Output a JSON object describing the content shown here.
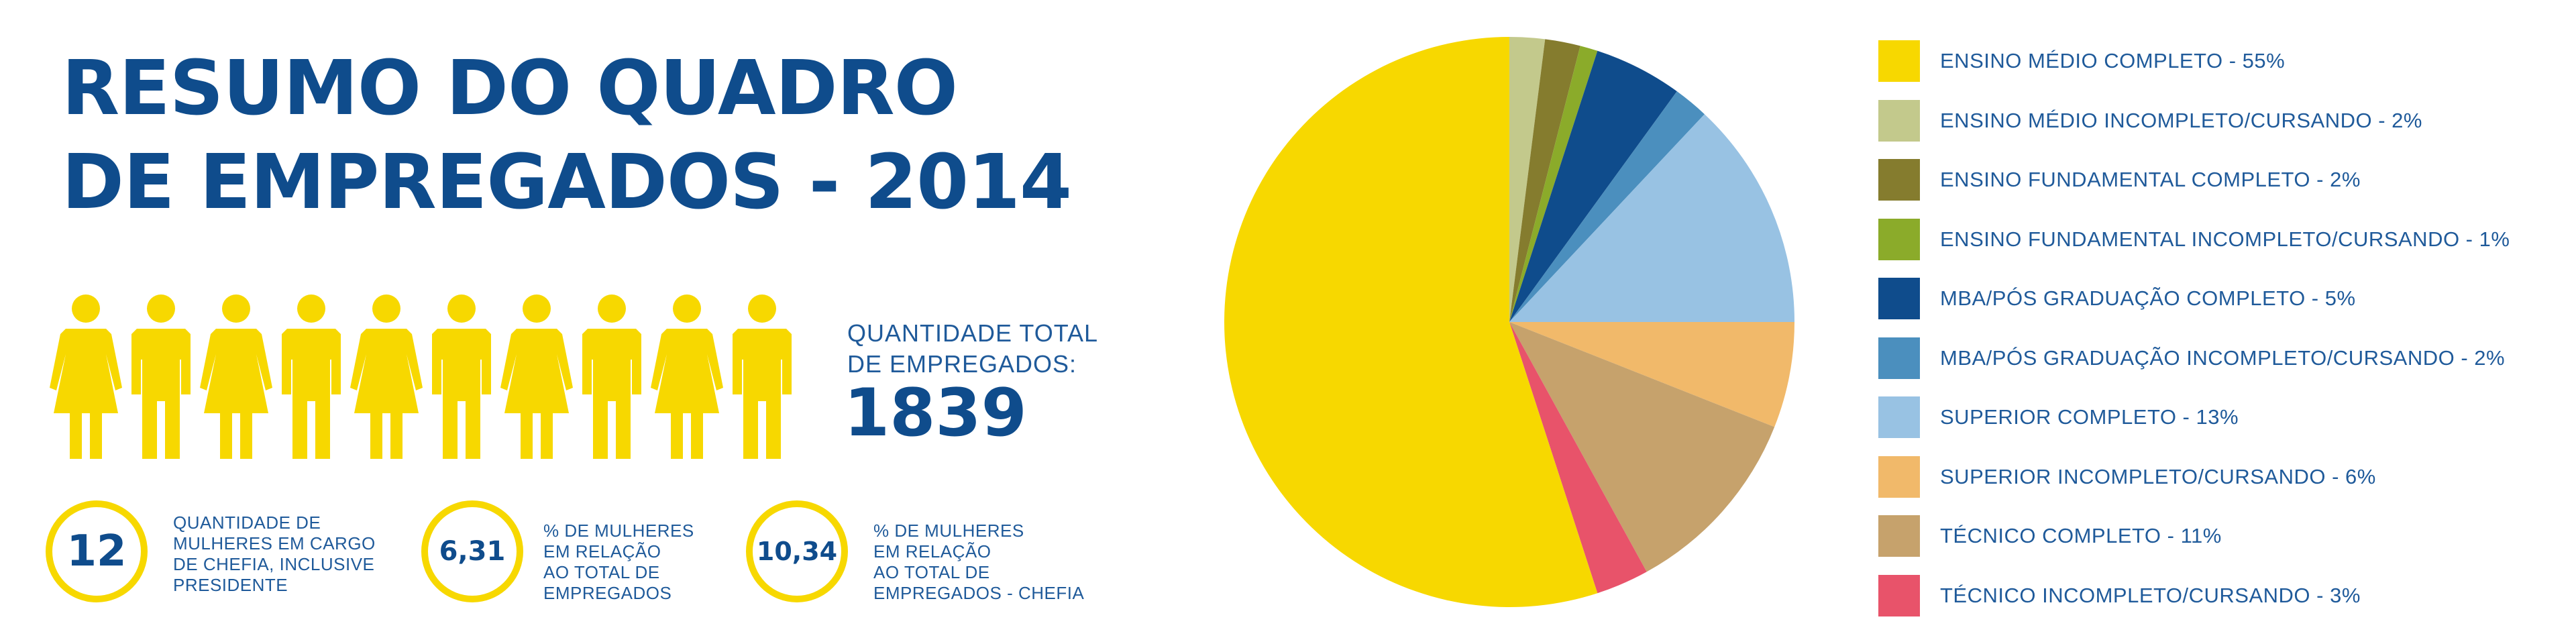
{
  "title": {
    "line1": "RESUMO DO QUADRO",
    "line2": "DE EMPREGADOS - 2014"
  },
  "total": {
    "label_line1": "QUANTIDADE TOTAL",
    "label_line2": "DE EMPREGADOS:",
    "value": "1839"
  },
  "stats": [
    {
      "value": "12",
      "lines": [
        "QUANTIDADE DE",
        "MULHERES EM CARGO",
        "DE CHEFIA, INCLUSIVE",
        "PRESIDENTE"
      ]
    },
    {
      "value": "6,31",
      "lines": [
        "% DE MULHERES",
        "EM RELAÇÃO",
        "AO TOTAL DE",
        "EMPREGADOS"
      ]
    },
    {
      "value": "10,34",
      "lines": [
        "% DE MULHERES",
        "EM RELAÇÃO",
        "AO TOTAL DE",
        "EMPREGADOS - CHEFIA"
      ]
    }
  ],
  "people_icons": [
    "woman-icon",
    "man-icon",
    "woman-icon",
    "man-icon",
    "woman-icon",
    "man-icon",
    "woman-icon",
    "man-icon",
    "woman-icon",
    "man-icon"
  ],
  "colors": {
    "accent_yellow": "#f7d800",
    "title_blue": "#0f4c8c",
    "text_blue": "#1f5a9a"
  },
  "chart_data": {
    "type": "pie",
    "start": "top",
    "direction": "clockwise",
    "slices": [
      {
        "label": "ENSINO MÉDIO INCOMPLETO/CURSANDO - 2%",
        "value": 2,
        "color": "#c3c98c"
      },
      {
        "label": "ENSINO FUNDAMENTAL COMPLETO - 2%",
        "value": 2,
        "color": "#857c2e"
      },
      {
        "label": "ENSINO FUNDAMENTAL INCOMPLETO/CURSANDO - 1%",
        "value": 1,
        "color": "#8bab2a"
      },
      {
        "label": "MBA/PÓS GRADUAÇÃO COMPLETO - 5%",
        "value": 5,
        "color": "#0f4c8c"
      },
      {
        "label": "MBA/PÓS GRADUAÇÃO INCOMPLETO/CURSANDO - 2%",
        "value": 2,
        "color": "#4b8fbe"
      },
      {
        "label": "SUPERIOR COMPLETO - 13%",
        "value": 13,
        "color": "#98c2e3"
      },
      {
        "label": "SUPERIOR INCOMPLETO/CURSANDO - 6%",
        "value": 6,
        "color": "#f1b96a"
      },
      {
        "label": "TÉCNICO COMPLETO - 11%",
        "value": 11,
        "color": "#c6a26c"
      },
      {
        "label": "TÉCNICO INCOMPLETO/CURSANDO - 3%",
        "value": 3,
        "color": "#e8536a"
      },
      {
        "label": "ENSINO MÉDIO COMPLETO - 55%",
        "value": 55,
        "color": "#f7d800"
      }
    ],
    "legend": [
      {
        "label": "ENSINO MÉDIO COMPLETO - 55%",
        "color": "#f7d800"
      },
      {
        "label": "ENSINO MÉDIO INCOMPLETO/CURSANDO - 2%",
        "color": "#c3c98c"
      },
      {
        "label": "ENSINO FUNDAMENTAL COMPLETO - 2%",
        "color": "#857c2e"
      },
      {
        "label": "ENSINO FUNDAMENTAL INCOMPLETO/CURSANDO - 1%",
        "color": "#8bab2a"
      },
      {
        "label": "MBA/PÓS GRADUAÇÃO COMPLETO - 5%",
        "color": "#0f4c8c"
      },
      {
        "label": "MBA/PÓS GRADUAÇÃO INCOMPLETO/CURSANDO - 2%",
        "color": "#4b8fbe"
      },
      {
        "label": "SUPERIOR COMPLETO - 13%",
        "color": "#98c2e3"
      },
      {
        "label": "SUPERIOR INCOMPLETO/CURSANDO - 6%",
        "color": "#f1b96a"
      },
      {
        "label": "TÉCNICO COMPLETO - 11%",
        "color": "#c6a26c"
      },
      {
        "label": "TÉCNICO INCOMPLETO/CURSANDO - 3%",
        "color": "#e8536a"
      }
    ]
  }
}
